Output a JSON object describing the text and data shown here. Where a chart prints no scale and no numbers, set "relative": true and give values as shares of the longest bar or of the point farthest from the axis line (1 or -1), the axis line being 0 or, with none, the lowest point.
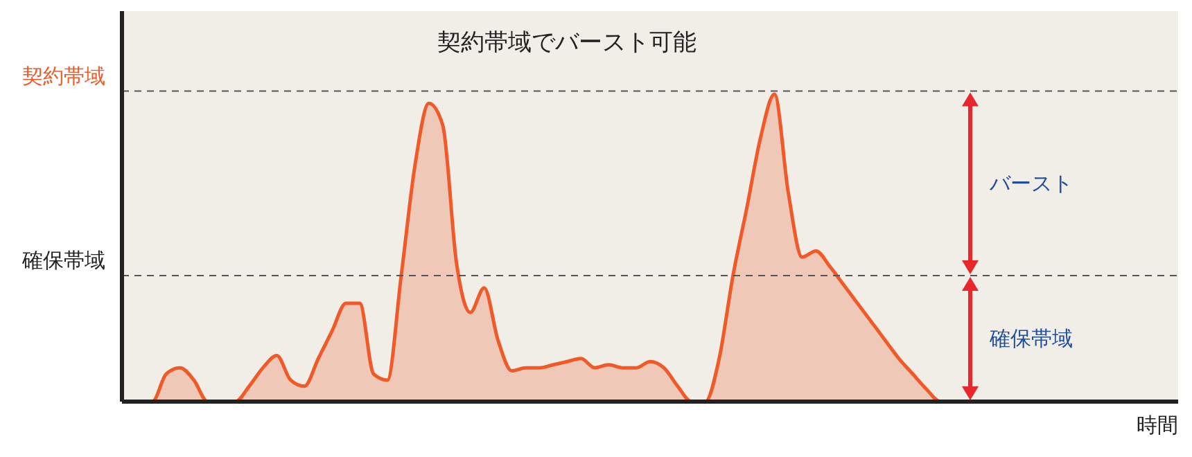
{
  "chart_data": {
    "type": "area",
    "relative": true,
    "title": "契約帯域でバースト可能",
    "xlabel": "時間",
    "categories": [
      null,
      null,
      null,
      null,
      null,
      null,
      null,
      null,
      null,
      null,
      null,
      null,
      null,
      null,
      null,
      null,
      null,
      null,
      null,
      null,
      null,
      null,
      null,
      null,
      null,
      null,
      null,
      null,
      null,
      null,
      null,
      null,
      null,
      null,
      null,
      null,
      null,
      null,
      null,
      null,
      null,
      null,
      null,
      null,
      null,
      null,
      null,
      null,
      null,
      null,
      null,
      null,
      null,
      null,
      null,
      null,
      null,
      null,
      null,
      null,
      null,
      null,
      null,
      null,
      null,
      null,
      null,
      null,
      null,
      null,
      null,
      null,
      null,
      null,
      null,
      null,
      null
    ],
    "series": [
      {
        "color": "#f05a28",
        "values": [
          0,
          0,
          0,
          0.09,
          0.11,
          0.07,
          0,
          0,
          0,
          0.05,
          0.11,
          0.15,
          0.07,
          0.05,
          0.14,
          0.23,
          0.32,
          0.32,
          0.09,
          0.07,
          0.41,
          0.77,
          0.97,
          0.9,
          0.45,
          0.29,
          0.37,
          0.2,
          0.1,
          0.11,
          0.11,
          0.12,
          0.13,
          0.14,
          0.11,
          0.12,
          0.11,
          0.11,
          0.13,
          0.11,
          0.05,
          0,
          0,
          0.14,
          0.41,
          0.63,
          0.86,
          1,
          0.68,
          0.47,
          0.49,
          0.44,
          0.38,
          0.32,
          0.26,
          0.2,
          0.14,
          0.09,
          0.04,
          0,
          0,
          0,
          0,
          0,
          0,
          0,
          0,
          0,
          0,
          0,
          0,
          0,
          0,
          0,
          0,
          0,
          0
        ]
      }
    ],
    "ref_lines": [
      {
        "axis": "y",
        "value": 1.01,
        "label": "契約帯域",
        "color": "#555555",
        "line_style": "dashed"
      },
      {
        "axis": "y",
        "value": 0.41,
        "label": "確保帯域",
        "color": "#555555",
        "line_style": "dashed"
      }
    ],
    "annotations": [
      "バースト",
      "確保帯域"
    ]
  }
}
